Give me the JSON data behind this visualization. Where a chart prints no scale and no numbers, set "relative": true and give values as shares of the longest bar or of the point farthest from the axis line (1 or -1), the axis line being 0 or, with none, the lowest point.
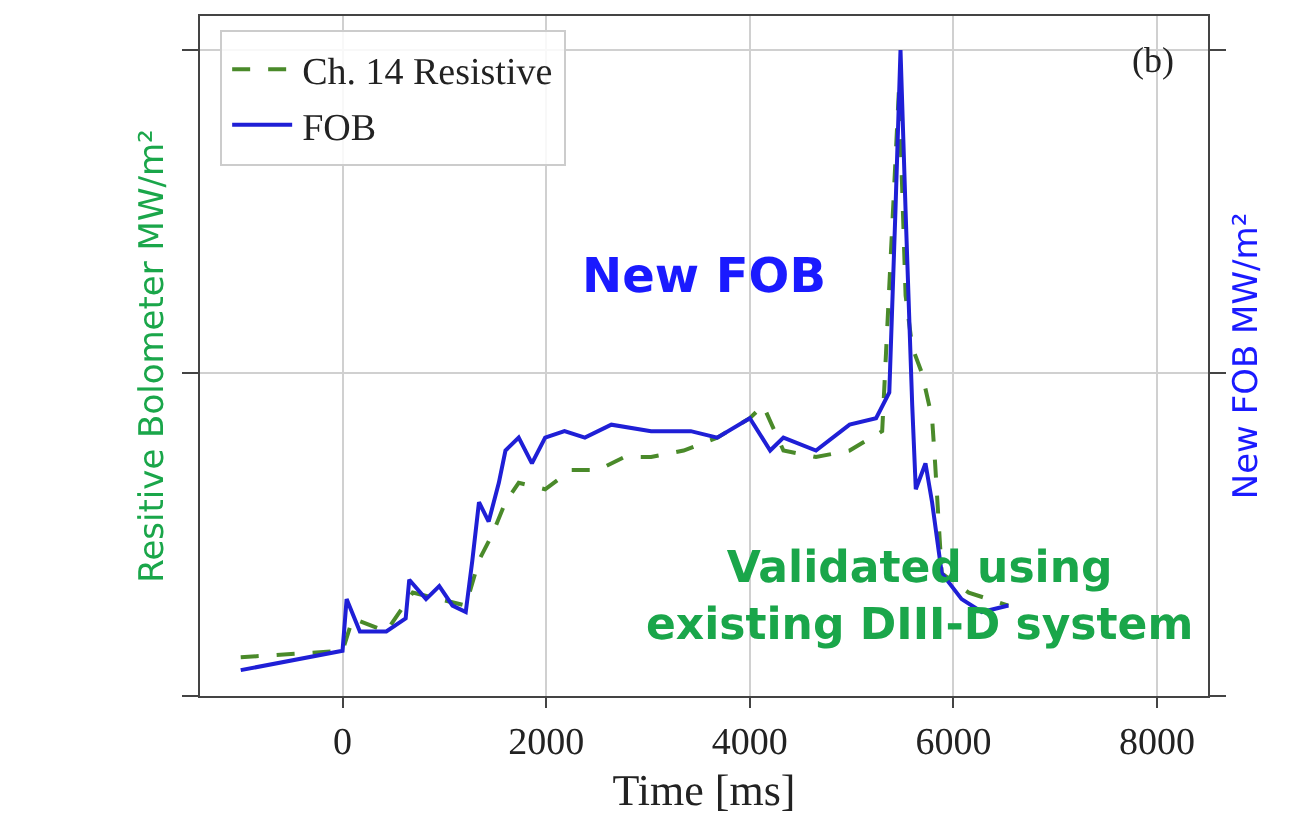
{
  "chart_data": {
    "type": "line",
    "relative": true,
    "xlabel": "Time [ms]",
    "ylabel": "Resitive Bolometer MW/m²",
    "y2label": "New FOB MW/m²",
    "xlim": [
      -1400,
      8500
    ],
    "xticks": [
      0,
      2000,
      4000,
      6000,
      8000
    ],
    "grid": true,
    "legend": "top left",
    "tick_labels": "x",
    "annotations": [
      "(b)",
      "New FOB",
      "Validated using\nexisting DIII-D system"
    ],
    "series": [
      {
        "name": "Ch. 14 Resistive",
        "color": "#4a8a2a",
        "line_style": "dashed",
        "x": [
          -1000,
          0,
          100,
          430,
          690,
          950,
          1210,
          1340,
          1470,
          1600,
          1730,
          1990,
          2250,
          2510,
          2770,
          3030,
          3350,
          3680,
          4000,
          4130,
          4330,
          4650,
          4980,
          5300,
          5465,
          5530,
          5595,
          5690,
          5790,
          5820,
          5885,
          6150,
          6540
        ],
        "values": [
          0.06,
          0.07,
          0.12,
          0.1,
          0.16,
          0.15,
          0.14,
          0.21,
          0.25,
          0.3,
          0.33,
          0.32,
          0.35,
          0.35,
          0.37,
          0.37,
          0.38,
          0.4,
          0.43,
          0.45,
          0.38,
          0.37,
          0.38,
          0.41,
          0.94,
          0.62,
          0.54,
          0.5,
          0.43,
          0.36,
          0.19,
          0.16,
          0.14
        ]
      },
      {
        "name": "FOB",
        "color": "#1f1fd6",
        "line_style": "solid",
        "x": [
          -1000,
          0,
          40,
          170,
          430,
          620,
          655,
          820,
          950,
          1080,
          1210,
          1275,
          1340,
          1435,
          1535,
          1600,
          1730,
          1860,
          1990,
          2180,
          2380,
          2640,
          3030,
          3420,
          3680,
          4000,
          4200,
          4330,
          4650,
          4980,
          5240,
          5370,
          5430,
          5480,
          5530,
          5595,
          5630,
          5725,
          5790,
          5885,
          6080,
          6280,
          6540
        ],
        "values": [
          0.04,
          0.07,
          0.15,
          0.1,
          0.1,
          0.12,
          0.18,
          0.15,
          0.17,
          0.14,
          0.13,
          0.21,
          0.3,
          0.27,
          0.33,
          0.38,
          0.4,
          0.36,
          0.4,
          0.41,
          0.4,
          0.42,
          0.41,
          0.41,
          0.4,
          0.43,
          0.38,
          0.4,
          0.38,
          0.42,
          0.43,
          0.47,
          0.75,
          1.0,
          0.75,
          0.45,
          0.32,
          0.36,
          0.3,
          0.19,
          0.15,
          0.13,
          0.14
        ]
      }
    ]
  }
}
